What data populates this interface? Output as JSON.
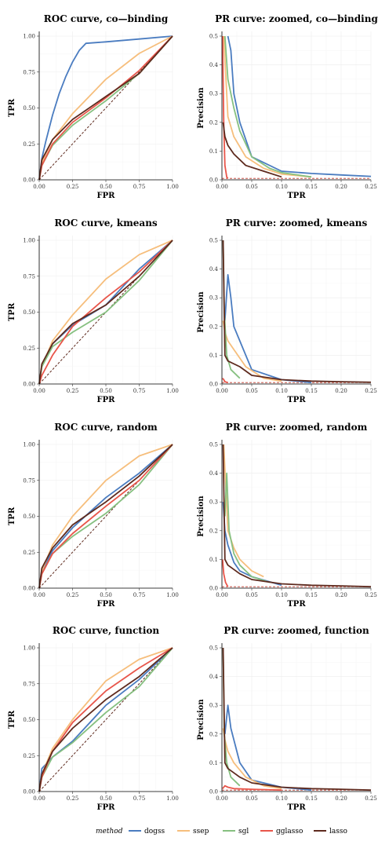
{
  "colors": {
    "dogss": "#4a7cc0",
    "ssep": "#f6be7c",
    "sgl": "#86c080",
    "gglasso": "#e8554a",
    "lasso": "#5e2a1e"
  },
  "legend": {
    "title": "method",
    "items": [
      "dogss",
      "ssep",
      "sgl",
      "gglasso",
      "lasso"
    ]
  },
  "chart_data": [
    {
      "type": "line",
      "title": "ROC curve, co—binding",
      "xlabel": "FPR",
      "ylabel": "TPR",
      "xlim": [
        0,
        1
      ],
      "ylim": [
        0,
        1
      ],
      "xticks": [
        "0.00",
        "0.25",
        "0.50",
        "0.75",
        "1.00"
      ],
      "yticks": [
        "0.00",
        "0.25",
        "0.50",
        "0.75",
        "1.00"
      ],
      "grid": true,
      "diagonal": true,
      "series": [
        {
          "name": "dogss",
          "x": [
            0,
            0.02,
            0.05,
            0.1,
            0.15,
            0.2,
            0.25,
            0.3,
            0.35,
            0.5,
            0.75,
            1
          ],
          "y": [
            0,
            0.15,
            0.27,
            0.45,
            0.6,
            0.72,
            0.82,
            0.9,
            0.95,
            0.96,
            0.98,
            1
          ]
        },
        {
          "name": "ssep",
          "x": [
            0,
            0.02,
            0.1,
            0.25,
            0.5,
            0.75,
            1
          ],
          "y": [
            0,
            0.12,
            0.28,
            0.46,
            0.7,
            0.88,
            1
          ]
        },
        {
          "name": "sgl",
          "x": [
            0,
            0.02,
            0.1,
            0.25,
            0.5,
            0.75,
            1
          ],
          "y": [
            0,
            0.1,
            0.24,
            0.38,
            0.55,
            0.74,
            1
          ]
        },
        {
          "name": "gglasso",
          "x": [
            0,
            0.02,
            0.1,
            0.25,
            0.5,
            0.75,
            1
          ],
          "y": [
            0,
            0.1,
            0.25,
            0.4,
            0.57,
            0.76,
            1
          ]
        },
        {
          "name": "lasso",
          "x": [
            0,
            0.02,
            0.1,
            0.25,
            0.5,
            0.75,
            1
          ],
          "y": [
            0,
            0.14,
            0.28,
            0.42,
            0.58,
            0.74,
            1
          ]
        }
      ]
    },
    {
      "type": "line",
      "title": "PR curve: zoomed, co—binding",
      "xlabel": "TPR",
      "ylabel": "Precision",
      "xlim": [
        0,
        0.25
      ],
      "ylim": [
        0,
        0.5
      ],
      "xticks": [
        "0.00",
        "0.05",
        "0.10",
        "0.15",
        "0.20",
        "0.25"
      ],
      "yticks": [
        "0.0",
        "0.1",
        "0.2",
        "0.3",
        "0.4",
        "0.5"
      ],
      "grid": true,
      "baseline": 0.005,
      "series": [
        {
          "name": "dogss",
          "x": [
            0.01,
            0.015,
            0.02,
            0.03,
            0.05,
            0.1,
            0.15,
            0.2,
            0.25
          ],
          "y": [
            0.5,
            0.45,
            0.3,
            0.2,
            0.08,
            0.03,
            0.022,
            0.017,
            0.012
          ]
        },
        {
          "name": "ssep",
          "x": [
            0.003,
            0.01,
            0.02,
            0.04,
            0.07,
            0.1,
            0.15
          ],
          "y": [
            0.5,
            0.22,
            0.15,
            0.08,
            0.04,
            0.02,
            0.01
          ]
        },
        {
          "name": "sgl",
          "x": [
            0.005,
            0.01,
            0.02,
            0.03,
            0.05,
            0.08,
            0.1,
            0.15
          ],
          "y": [
            0.5,
            0.35,
            0.25,
            0.17,
            0.08,
            0.04,
            0.025,
            0.01
          ]
        },
        {
          "name": "gglasso",
          "x": [
            0.001,
            0.003,
            0.005,
            0.008,
            0.01
          ],
          "y": [
            0.5,
            0.2,
            0.05,
            0.01,
            0.005
          ]
        },
        {
          "name": "lasso",
          "x": [
            0.002,
            0.005,
            0.01,
            0.02,
            0.04,
            0.07,
            0.1
          ],
          "y": [
            0.2,
            0.15,
            0.12,
            0.09,
            0.05,
            0.03,
            0.01
          ]
        }
      ]
    },
    {
      "type": "line",
      "title": "ROC curve, kmeans",
      "xlabel": "FPR",
      "ylabel": "TPR",
      "xlim": [
        0,
        1
      ],
      "ylim": [
        0,
        1
      ],
      "xticks": [
        "0.00",
        "0.25",
        "0.50",
        "0.75",
        "1.00"
      ],
      "yticks": [
        "0.00",
        "0.25",
        "0.50",
        "0.75",
        "1.00"
      ],
      "grid": true,
      "diagonal": true,
      "series": [
        {
          "name": "dogss",
          "x": [
            0,
            0.02,
            0.1,
            0.25,
            0.5,
            0.75,
            1
          ],
          "y": [
            0,
            0.13,
            0.28,
            0.41,
            0.55,
            0.8,
            1
          ]
        },
        {
          "name": "ssep",
          "x": [
            0,
            0.02,
            0.1,
            0.25,
            0.5,
            0.75,
            1
          ],
          "y": [
            0,
            0.12,
            0.3,
            0.48,
            0.73,
            0.9,
            1
          ]
        },
        {
          "name": "sgl",
          "x": [
            0,
            0.02,
            0.1,
            0.25,
            0.5,
            0.75,
            1
          ],
          "y": [
            0,
            0.12,
            0.26,
            0.36,
            0.5,
            0.72,
            1
          ]
        },
        {
          "name": "gglasso",
          "x": [
            0,
            0.02,
            0.1,
            0.25,
            0.5,
            0.75,
            1
          ],
          "y": [
            0,
            0.06,
            0.2,
            0.4,
            0.6,
            0.78,
            1
          ]
        },
        {
          "name": "lasso",
          "x": [
            0,
            0.02,
            0.1,
            0.25,
            0.5,
            0.75,
            1
          ],
          "y": [
            0,
            0.14,
            0.28,
            0.42,
            0.55,
            0.75,
            1
          ]
        }
      ]
    },
    {
      "type": "line",
      "title": "PR curve: zoomed, kmeans",
      "xlabel": "TPR",
      "ylabel": "Precision",
      "xlim": [
        0,
        0.25
      ],
      "ylim": [
        0,
        0.5
      ],
      "xticks": [
        "0.00",
        "0.05",
        "0.10",
        "0.15",
        "0.20",
        "0.25"
      ],
      "yticks": [
        "0.0",
        "0.1",
        "0.2",
        "0.3",
        "0.4",
        "0.5"
      ],
      "grid": true,
      "baseline": 0.005,
      "series": [
        {
          "name": "dogss",
          "x": [
            0.005,
            0.01,
            0.015,
            0.02,
            0.03,
            0.05,
            0.1,
            0.15
          ],
          "y": [
            0.22,
            0.38,
            0.3,
            0.2,
            0.15,
            0.05,
            0.015,
            0.005
          ]
        },
        {
          "name": "ssep",
          "x": [
            0.002,
            0.005,
            0.01,
            0.02,
            0.04,
            0.07,
            0.1
          ],
          "y": [
            0.22,
            0.18,
            0.15,
            0.12,
            0.06,
            0.02,
            0.01
          ]
        },
        {
          "name": "sgl",
          "x": [
            0.002,
            0.004,
            0.008,
            0.015,
            0.03
          ],
          "y": [
            0.5,
            0.25,
            0.1,
            0.05,
            0.02
          ]
        },
        {
          "name": "gglasso",
          "x": [
            0.001,
            0.003,
            0.005,
            0.01
          ],
          "y": [
            0.02,
            0.015,
            0.008,
            0.005
          ]
        },
        {
          "name": "lasso",
          "x": [
            0.002,
            0.005,
            0.01,
            0.03,
            0.05,
            0.1,
            0.15,
            0.2,
            0.25
          ],
          "y": [
            0.5,
            0.1,
            0.08,
            0.06,
            0.03,
            0.015,
            0.01,
            0.008,
            0.006
          ]
        }
      ]
    },
    {
      "type": "line",
      "title": "ROC curve, random",
      "xlabel": "FPR",
      "ylabel": "TPR",
      "xlim": [
        0,
        1
      ],
      "ylim": [
        0,
        1
      ],
      "xticks": [
        "0.00",
        "0.25",
        "0.50",
        "0.75",
        "1.00"
      ],
      "yticks": [
        "0.00",
        "0.25",
        "0.50",
        "0.75",
        "1.00"
      ],
      "grid": true,
      "diagonal": true,
      "series": [
        {
          "name": "dogss",
          "x": [
            0,
            0.02,
            0.1,
            0.25,
            0.5,
            0.75,
            1
          ],
          "y": [
            0,
            0.12,
            0.26,
            0.42,
            0.63,
            0.8,
            1
          ]
        },
        {
          "name": "ssep",
          "x": [
            0,
            0.02,
            0.1,
            0.25,
            0.5,
            0.75,
            1
          ],
          "y": [
            0,
            0.12,
            0.3,
            0.5,
            0.75,
            0.92,
            1
          ]
        },
        {
          "name": "sgl",
          "x": [
            0,
            0.02,
            0.1,
            0.25,
            0.5,
            0.75,
            1
          ],
          "y": [
            0,
            0.1,
            0.24,
            0.36,
            0.52,
            0.72,
            1
          ]
        },
        {
          "name": "gglasso",
          "x": [
            0,
            0.02,
            0.1,
            0.25,
            0.5,
            0.75,
            1
          ],
          "y": [
            0,
            0.1,
            0.24,
            0.38,
            0.57,
            0.75,
            1
          ]
        },
        {
          "name": "lasso",
          "x": [
            0,
            0.02,
            0.1,
            0.25,
            0.5,
            0.75,
            1
          ],
          "y": [
            0,
            0.14,
            0.28,
            0.44,
            0.6,
            0.78,
            1
          ]
        }
      ]
    },
    {
      "type": "line",
      "title": "PR curve: zoomed, random",
      "xlabel": "TPR",
      "ylabel": "Precision",
      "xlim": [
        0,
        0.25
      ],
      "ylim": [
        0,
        0.5
      ],
      "xticks": [
        "0.00",
        "0.05",
        "0.10",
        "0.15",
        "0.20",
        "0.25"
      ],
      "yticks": [
        "0.0",
        "0.1",
        "0.2",
        "0.3",
        "0.4",
        "0.5"
      ],
      "grid": true,
      "baseline": 0.005,
      "series": [
        {
          "name": "dogss",
          "x": [
            0.002,
            0.005,
            0.01,
            0.02,
            0.03,
            0.05,
            0.1
          ],
          "y": [
            0.3,
            0.2,
            0.15,
            0.09,
            0.06,
            0.04,
            0.01
          ]
        },
        {
          "name": "ssep",
          "x": [
            0.003,
            0.01,
            0.02,
            0.03,
            0.05,
            0.07
          ],
          "y": [
            0.5,
            0.2,
            0.14,
            0.1,
            0.06,
            0.04
          ]
        },
        {
          "name": "sgl",
          "x": [
            0.005,
            0.008,
            0.012,
            0.02,
            0.03,
            0.05,
            0.08
          ],
          "y": [
            0.25,
            0.4,
            0.2,
            0.12,
            0.08,
            0.04,
            0.02
          ]
        },
        {
          "name": "gglasso",
          "x": [
            0.001,
            0.003,
            0.006,
            0.01
          ],
          "y": [
            0.1,
            0.05,
            0.02,
            0.005
          ]
        },
        {
          "name": "lasso",
          "x": [
            0.002,
            0.005,
            0.01,
            0.03,
            0.05,
            0.1,
            0.15,
            0.2,
            0.25
          ],
          "y": [
            0.5,
            0.1,
            0.08,
            0.05,
            0.03,
            0.015,
            0.01,
            0.008,
            0.005
          ]
        }
      ]
    },
    {
      "type": "line",
      "title": "ROC curve, function",
      "xlabel": "FPR",
      "ylabel": "TPR",
      "xlim": [
        0,
        1
      ],
      "ylim": [
        0,
        1
      ],
      "xticks": [
        "0.00",
        "0.25",
        "0.50",
        "0.75",
        "1.00"
      ],
      "yticks": [
        "0.00",
        "0.25",
        "0.50",
        "0.75",
        "1.00"
      ],
      "grid": true,
      "diagonal": true,
      "series": [
        {
          "name": "dogss",
          "x": [
            0,
            0.02,
            0.1,
            0.25,
            0.5,
            0.75,
            1
          ],
          "y": [
            0,
            0.16,
            0.24,
            0.35,
            0.6,
            0.78,
            1
          ]
        },
        {
          "name": "ssep",
          "x": [
            0,
            0.02,
            0.1,
            0.25,
            0.5,
            0.75,
            1
          ],
          "y": [
            0,
            0.12,
            0.3,
            0.5,
            0.77,
            0.92,
            1
          ]
        },
        {
          "name": "sgl",
          "x": [
            0,
            0.02,
            0.1,
            0.25,
            0.5,
            0.75,
            1
          ],
          "y": [
            0,
            0.1,
            0.24,
            0.34,
            0.55,
            0.73,
            1
          ]
        },
        {
          "name": "gglasso",
          "x": [
            0,
            0.02,
            0.1,
            0.25,
            0.5,
            0.75,
            1
          ],
          "y": [
            0,
            0.1,
            0.28,
            0.48,
            0.7,
            0.86,
            1
          ]
        },
        {
          "name": "lasso",
          "x": [
            0,
            0.02,
            0.1,
            0.25,
            0.5,
            0.75,
            1
          ],
          "y": [
            0,
            0.12,
            0.28,
            0.44,
            0.64,
            0.8,
            1
          ]
        }
      ]
    },
    {
      "type": "line",
      "title": "PR curve: zoomed, function",
      "xlabel": "TPR",
      "ylabel": "Precision",
      "xlim": [
        0,
        0.25
      ],
      "ylim": [
        0,
        0.5
      ],
      "xticks": [
        "0.00",
        "0.05",
        "0.10",
        "0.15",
        "0.20",
        "0.25"
      ],
      "yticks": [
        "0.0",
        "0.1",
        "0.2",
        "0.3",
        "0.4",
        "0.5"
      ],
      "grid": true,
      "baseline": 0.005,
      "series": [
        {
          "name": "dogss",
          "x": [
            0.005,
            0.01,
            0.015,
            0.02,
            0.03,
            0.05,
            0.1,
            0.15
          ],
          "y": [
            0.2,
            0.3,
            0.22,
            0.18,
            0.1,
            0.04,
            0.015,
            0.005
          ]
        },
        {
          "name": "ssep",
          "x": [
            0.002,
            0.005,
            0.01,
            0.02,
            0.04,
            0.07,
            0.1
          ],
          "y": [
            0.22,
            0.18,
            0.14,
            0.1,
            0.05,
            0.02,
            0.01
          ]
        },
        {
          "name": "sgl",
          "x": [
            0.002,
            0.004,
            0.008,
            0.015,
            0.03
          ],
          "y": [
            0.5,
            0.2,
            0.1,
            0.05,
            0.02
          ]
        },
        {
          "name": "gglasso",
          "x": [
            0.001,
            0.005,
            0.01,
            0.02,
            0.05,
            0.1
          ],
          "y": [
            0.01,
            0.02,
            0.015,
            0.01,
            0.008,
            0.005
          ]
        },
        {
          "name": "lasso",
          "x": [
            0.002,
            0.005,
            0.01,
            0.03,
            0.05,
            0.1,
            0.15,
            0.2,
            0.25
          ],
          "y": [
            0.5,
            0.1,
            0.08,
            0.05,
            0.03,
            0.015,
            0.01,
            0.008,
            0.005
          ]
        }
      ]
    }
  ]
}
